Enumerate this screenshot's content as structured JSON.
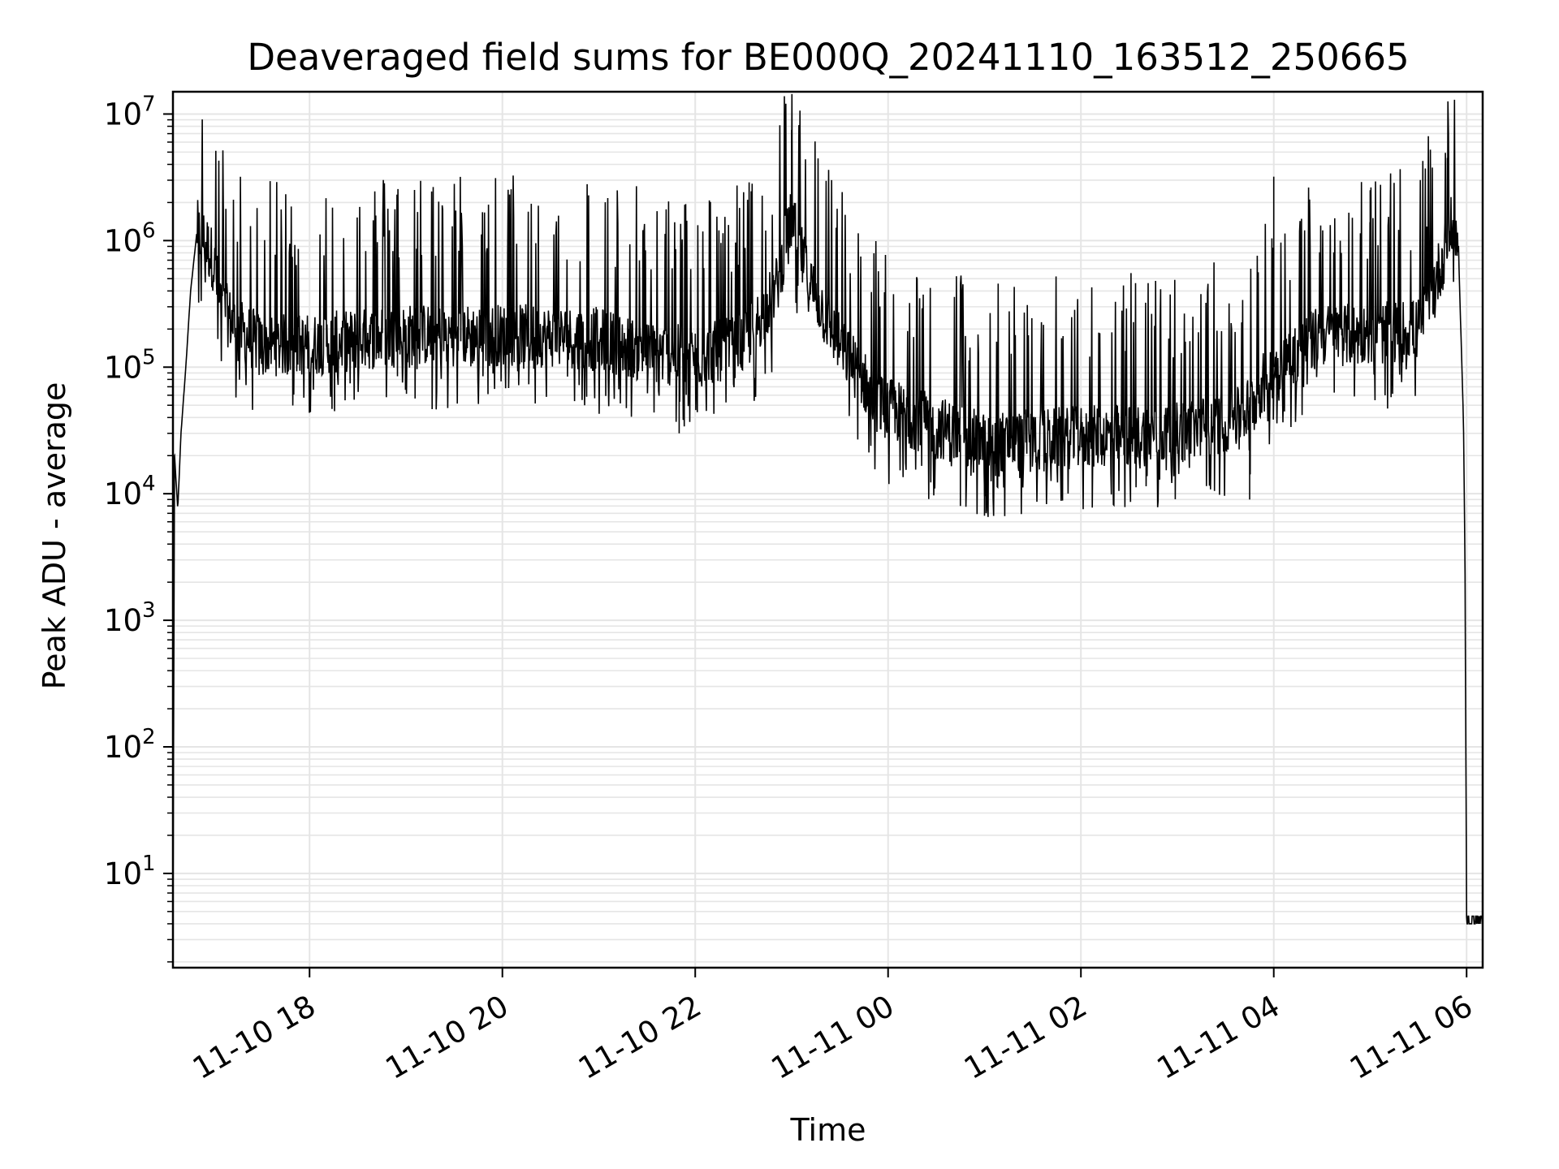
{
  "chart_data": {
    "type": "line",
    "title": "Deaveraged field sums for BE000Q_20241110_163512_250665",
    "xlabel": "Time",
    "ylabel": "Peak ADU - average",
    "yscale": "log",
    "ylim": [
      1.8,
      15000000
    ],
    "xlim": [
      "2024-11-10 16:35",
      "2024-11-11 06:10"
    ],
    "grid": true,
    "grid_minor": true,
    "line_color": "#000000",
    "grid_color": "#e5e5e5",
    "x_ticks": [
      {
        "label": "11-10 18",
        "t": "2024-11-10 18:00"
      },
      {
        "label": "11-10 20",
        "t": "2024-11-10 20:00"
      },
      {
        "label": "11-10 22",
        "t": "2024-11-10 22:00"
      },
      {
        "label": "11-11 00",
        "t": "2024-11-11 00:00"
      },
      {
        "label": "11-11 02",
        "t": "2024-11-11 02:00"
      },
      {
        "label": "11-11 04",
        "t": "2024-11-11 04:00"
      },
      {
        "label": "11-11 06",
        "t": "2024-11-11 06:00"
      }
    ],
    "y_ticks": [
      {
        "base": "10",
        "exp": "1",
        "value": 10
      },
      {
        "base": "10",
        "exp": "2",
        "value": 100
      },
      {
        "base": "10",
        "exp": "3",
        "value": 1000
      },
      {
        "base": "10",
        "exp": "4",
        "value": 10000
      },
      {
        "base": "10",
        "exp": "5",
        "value": 100000
      },
      {
        "base": "10",
        "exp": "6",
        "value": 1000000
      },
      {
        "base": "10",
        "exp": "7",
        "value": 10000000
      }
    ],
    "series": [
      {
        "points": [
          [
            "2024-11-10 16:35",
            4
          ],
          [
            "2024-11-10 16:36",
            20000
          ],
          [
            "2024-11-10 16:38",
            7500
          ],
          [
            "2024-11-10 16:40",
            30000
          ],
          [
            "2024-11-10 16:43",
            100000
          ],
          [
            "2024-11-10 16:46",
            400000
          ],
          [
            "2024-11-10 16:50",
            1200000
          ],
          [
            "2024-11-10 16:55",
            1000000
          ],
          [
            "2024-11-10 17:00",
            700000
          ],
          [
            "2024-11-10 17:05",
            300000
          ],
          [
            "2024-11-10 17:15",
            200000
          ],
          [
            "2024-11-10 17:30",
            150000
          ],
          [
            "2024-11-10 18:00",
            150000
          ],
          [
            "2024-11-10 19:00",
            180000
          ],
          [
            "2024-11-10 20:00",
            180000
          ],
          [
            "2024-11-10 21:00",
            170000
          ],
          [
            "2024-11-10 21:30",
            130000
          ],
          [
            "2024-11-10 22:00",
            120000
          ],
          [
            "2024-11-10 22:30",
            150000
          ],
          [
            "2024-11-10 22:50",
            400000
          ],
          [
            "2024-11-10 23:00",
            1500000
          ],
          [
            "2024-11-10 23:10",
            500000
          ],
          [
            "2024-11-10 23:30",
            150000
          ],
          [
            "2024-11-10 23:55",
            50000
          ],
          [
            "2024-11-11 00:15",
            40000
          ],
          [
            "2024-11-11 01:00",
            25000
          ],
          [
            "2024-11-11 02:00",
            28000
          ],
          [
            "2024-11-11 03:00",
            30000
          ],
          [
            "2024-11-11 03:40",
            40000
          ],
          [
            "2024-11-11 04:00",
            100000
          ],
          [
            "2024-11-11 04:30",
            180000
          ],
          [
            "2024-11-11 05:00",
            180000
          ],
          [
            "2024-11-11 05:30",
            200000
          ],
          [
            "2024-11-11 05:45",
            700000
          ],
          [
            "2024-11-11 05:52",
            1500000
          ],
          [
            "2024-11-11 05:55",
            800000
          ],
          [
            "2024-11-11 05:58",
            40000
          ],
          [
            "2024-11-11 05:59",
            3000
          ],
          [
            "2024-11-11 06:00",
            4
          ],
          [
            "2024-11-11 06:10",
            4
          ]
        ],
        "spikes_max": [
          [
            "2024-11-10 23:00",
            7500000
          ],
          [
            "2024-11-11 05:48",
            4500000
          ],
          [
            "2024-11-11 04:00",
            3200000
          ],
          [
            "2024-11-11 05:00",
            2500000
          ]
        ],
        "spikes_min": [
          [
            "2024-11-11 00:45",
            8000
          ],
          [
            "2024-11-11 01:00",
            6700
          ],
          [
            "2024-11-11 03:45",
            9000
          ],
          [
            "2024-11-10 21:50",
            30000
          ]
        ]
      }
    ]
  }
}
